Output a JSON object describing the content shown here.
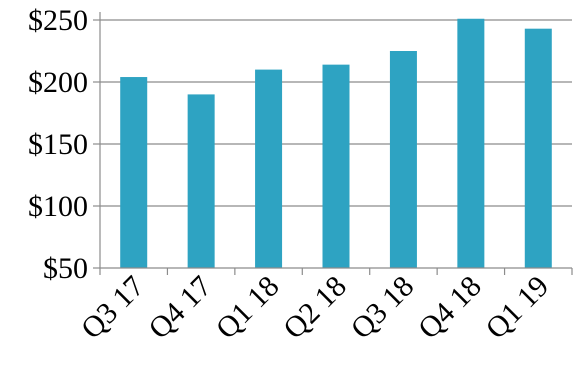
{
  "chart_data": {
    "type": "bar",
    "categories": [
      "Q3 17",
      "Q4 17",
      "Q1 18",
      "Q2 18",
      "Q3 18",
      "Q4 18",
      "Q1 19"
    ],
    "series": [
      {
        "values": [
          204,
          190,
          210,
          214,
          225,
          251,
          243
        ]
      }
    ],
    "title": "",
    "xlabel": "",
    "ylabel": "",
    "ylim": [
      50,
      250
    ],
    "y_ticks": [
      50,
      100,
      150,
      200,
      250
    ],
    "y_tick_labels": [
      "$50",
      "$100",
      "$150",
      "$200",
      "$250"
    ],
    "grid": true,
    "legend": "none",
    "colors": {
      "bar": "#2EA3C2",
      "grid": "#8C8C8C",
      "axis": "#8C8C8C"
    }
  }
}
